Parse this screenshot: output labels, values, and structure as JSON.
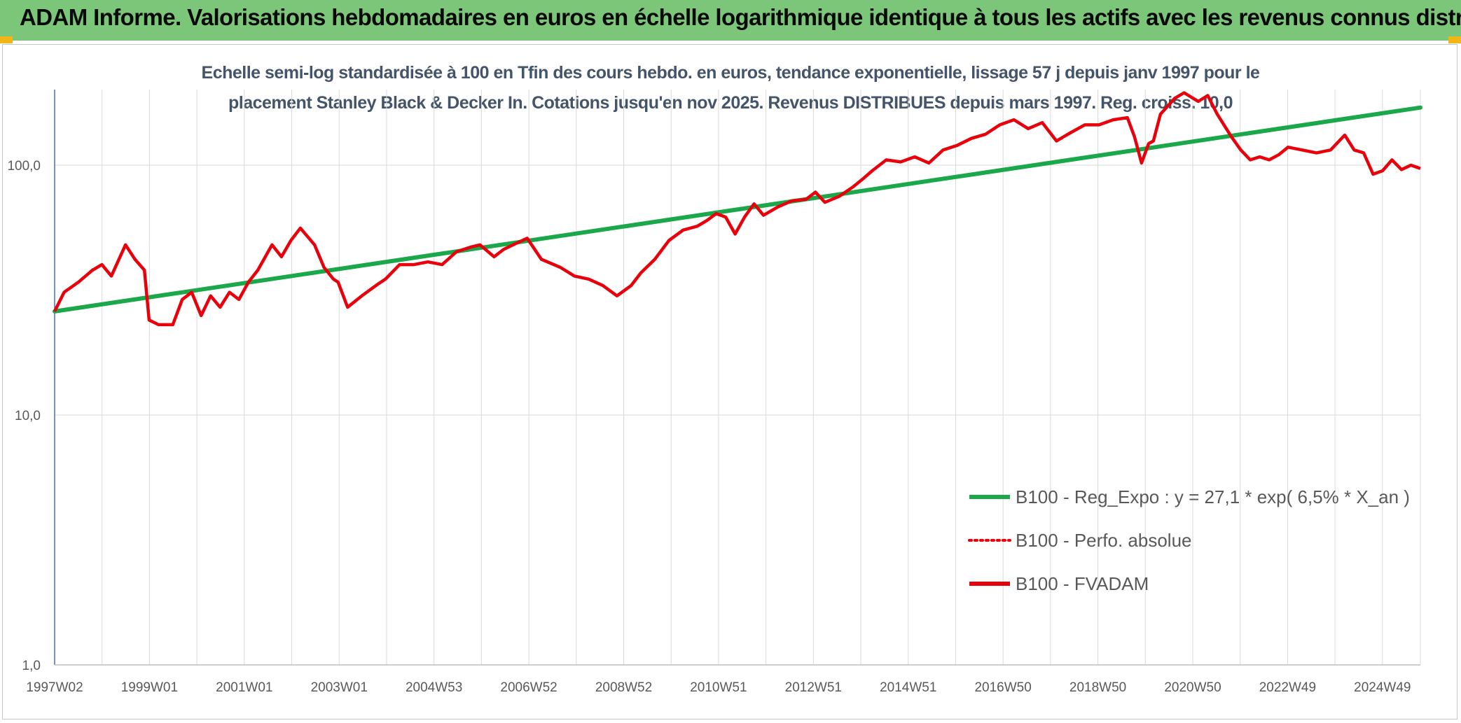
{
  "header": {
    "title": "ADAM Informe. Valorisations hebdomadaires en euros en échelle logarithmique identique à tous les actifs avec les revenus connus distribués"
  },
  "colors": {
    "banner": "#7bc679",
    "corner": "#f2b619",
    "series_regression": "#1aa84a",
    "series_fvadam": "#e8000b",
    "series_perfo": "#e8000b",
    "grid": "#d9d9d9",
    "axis_text": "#595959",
    "subtitle_text": "#44546a"
  },
  "chart_data": {
    "type": "line",
    "title_line1": "Echelle semi-log standardisée à 100 en Tfin des cours hebdo. en euros, tendance exponentielle, lissage 57 j depuis janv 1997 pour le",
    "title_line2": "placement Stanley Black & Decker In. Cotations jusqu'en nov 2025. Revenus DISTRIBUES depuis mars 1997. Reg. croiss. 10,0",
    "y_scale": "log",
    "ylim": [
      1,
      200
    ],
    "y_ticks": [
      "1,0",
      "10,0",
      "100,0"
    ],
    "xlim": [
      1997.0,
      2025.9
    ],
    "x_tick_labels": [
      "1997W02",
      "1999W01",
      "2001W01",
      "2003W01",
      "2004W53",
      "2006W52",
      "2008W52",
      "2010W51",
      "2012W51",
      "2014W51",
      "2016W50",
      "2018W50",
      "2020W50",
      "2022W49",
      "2024W49"
    ],
    "grid": true,
    "legend_position": "bottom-right",
    "series": [
      {
        "name": "B100 - Reg_Expo : y = 27,1 * exp( 6,5% *  X_an )",
        "style": "solid-thick",
        "x": [
          1997.0,
          2025.9
        ],
        "y": [
          26.0,
          170.0
        ]
      },
      {
        "name": "B100 - Perfo. absolue",
        "style": "dotted",
        "x": [],
        "y": []
      },
      {
        "name": "B100 - FVADAM",
        "style": "solid",
        "x": [
          1997.0,
          1997.2,
          1997.5,
          1997.8,
          1998.0,
          1998.2,
          1998.5,
          1998.7,
          1998.9,
          1999.0,
          1999.2,
          1999.5,
          1999.7,
          1999.9,
          2000.1,
          2000.3,
          2000.5,
          2000.7,
          2000.9,
          2001.1,
          2001.3,
          2001.6,
          2001.8,
          2002.0,
          2002.2,
          2002.5,
          2002.7,
          2002.9,
          2003.0,
          2003.2,
          2003.5,
          2003.8,
          2004.0,
          2004.3,
          2004.6,
          2004.9,
          2005.2,
          2005.5,
          2005.8,
          2006.0,
          2006.3,
          2006.5,
          2006.8,
          2007.0,
          2007.3,
          2007.7,
          2008.0,
          2008.3,
          2008.6,
          2008.9,
          2009.2,
          2009.4,
          2009.7,
          2010.0,
          2010.3,
          2010.6,
          2010.8,
          2011.0,
          2011.2,
          2011.4,
          2011.6,
          2011.8,
          2012.0,
          2012.3,
          2012.6,
          2012.9,
          2013.1,
          2013.3,
          2013.6,
          2013.9,
          2014.1,
          2014.3,
          2014.6,
          2014.9,
          2015.2,
          2015.5,
          2015.8,
          2016.1,
          2016.4,
          2016.7,
          2017.0,
          2017.3,
          2017.6,
          2017.9,
          2018.2,
          2018.5,
          2018.8,
          2019.1,
          2019.4,
          2019.7,
          2019.85,
          2020.0,
          2020.15,
          2020.25,
          2020.4,
          2020.7,
          2020.9,
          2021.2,
          2021.4,
          2021.6,
          2021.9,
          2022.1,
          2022.3,
          2022.5,
          2022.7,
          2022.9,
          2023.1,
          2023.4,
          2023.7,
          2024.0,
          2024.3,
          2024.5,
          2024.7,
          2024.9,
          2025.1,
          2025.3,
          2025.5,
          2025.7,
          2025.9
        ],
        "y": [
          26.0,
          31.0,
          34.0,
          38.0,
          40.0,
          36.0,
          48.0,
          42.0,
          38.0,
          24.0,
          23.0,
          23.0,
          29.0,
          31.0,
          25.0,
          30.0,
          27.0,
          31.0,
          29.0,
          34.0,
          38.0,
          48.0,
          43.0,
          50.0,
          56.0,
          48.0,
          39.0,
          35.0,
          34.0,
          27.0,
          30.0,
          33.0,
          35.0,
          40.0,
          40.0,
          41.0,
          40.0,
          45.0,
          47.0,
          48.0,
          43.0,
          46.0,
          49.0,
          51.0,
          42.0,
          39.0,
          36.0,
          35.0,
          33.0,
          30.0,
          33.0,
          37.0,
          42.0,
          50.0,
          55.0,
          57.0,
          60.0,
          64.0,
          62.0,
          53.0,
          62.0,
          70.0,
          63.0,
          68.0,
          72.0,
          73.0,
          78.0,
          71.0,
          75.0,
          82.0,
          88.0,
          95.0,
          105.0,
          103.0,
          108.0,
          102.0,
          115.0,
          120.0,
          128.0,
          133.0,
          145.0,
          152.0,
          140.0,
          148.0,
          125.0,
          135.0,
          145.0,
          145.0,
          152.0,
          155.0,
          130.0,
          102.0,
          122.0,
          125.0,
          160.0,
          185.0,
          195.0,
          180.0,
          190.0,
          160.0,
          130.0,
          115.0,
          105.0,
          108.0,
          105.0,
          110.0,
          118.0,
          115.0,
          112.0,
          115.0,
          132.0,
          115.0,
          112.0,
          92.0,
          95.0,
          105.0,
          96.0,
          100.0,
          97.0
        ]
      }
    ]
  }
}
